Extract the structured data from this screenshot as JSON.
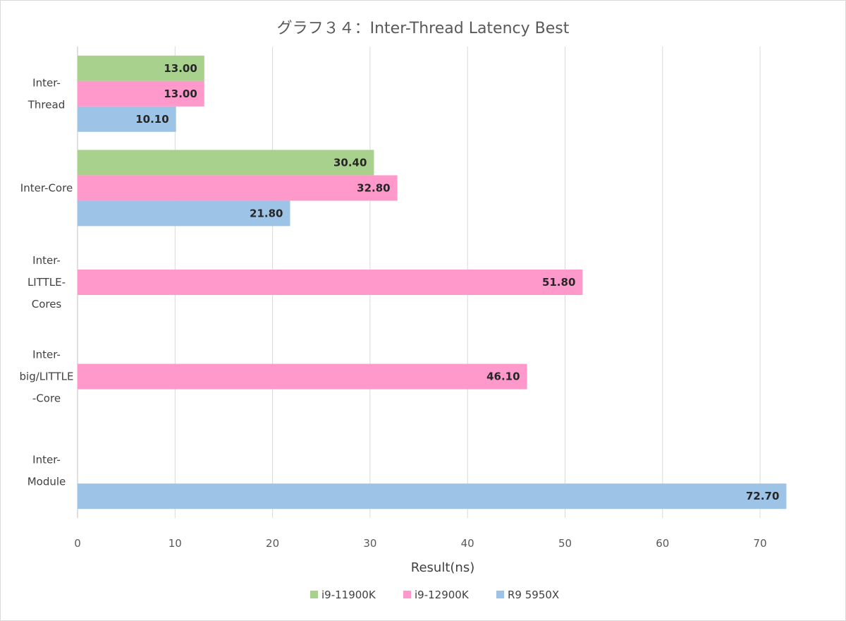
{
  "chart_data": {
    "type": "bar",
    "orientation": "horizontal",
    "title": "グラフ３４：Inter-Thread Latency Best",
    "xlabel": "Result(ns)",
    "ylabel": "",
    "xlim": [
      0,
      75
    ],
    "xticks": [
      0,
      10,
      20,
      30,
      40,
      50,
      60,
      70
    ],
    "grid": true,
    "legend_position": "bottom",
    "categories": [
      [
        "Inter-",
        "Thread"
      ],
      [
        "Inter-Core"
      ],
      [
        "Inter-",
        "LITTLE-",
        "Cores"
      ],
      [
        "Inter-",
        "big/LITTLE",
        "-Core"
      ],
      [
        "Inter-",
        "Module"
      ]
    ],
    "series": [
      {
        "name": "i9-11900K",
        "color": "#a9d18e",
        "values": [
          13.0,
          30.4,
          null,
          null,
          null
        ],
        "labels": [
          "13.00",
          "30.40",
          "",
          "",
          ""
        ]
      },
      {
        "name": "i9-12900K",
        "color": "#ff99cc",
        "values": [
          13.0,
          32.8,
          51.8,
          46.1,
          null
        ],
        "labels": [
          "13.00",
          "32.80",
          "51.80",
          "46.10",
          ""
        ]
      },
      {
        "name": "R9 5950X",
        "color": "#9dc3e6",
        "values": [
          10.1,
          21.8,
          null,
          null,
          72.7
        ],
        "labels": [
          "10.10",
          "21.80",
          "",
          "",
          "72.70"
        ]
      }
    ]
  }
}
